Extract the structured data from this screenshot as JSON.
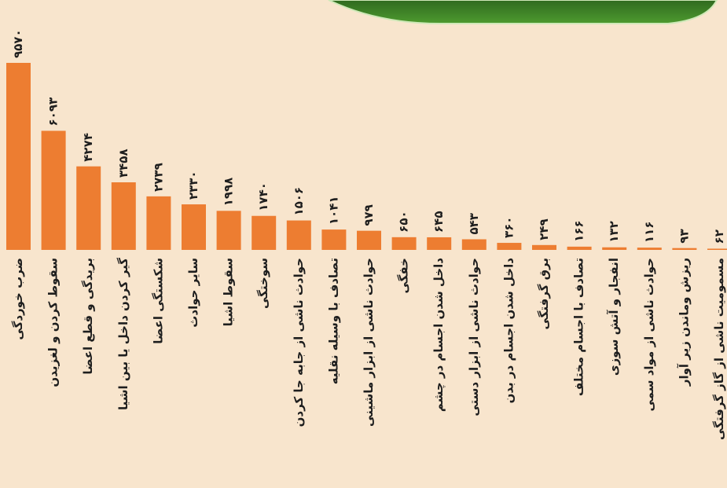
{
  "chart_data": {
    "type": "bar",
    "color": "#ed7d31",
    "categories": [
      "ضرب خوردگی",
      "سقوط کردن و لغزیدن",
      "بریدگی و قطع اعضا",
      "گیر کردن داخل یا بین اشیا",
      "شکستگی اعضا",
      "سایر حوادث",
      "سقوط اشیا",
      "سوختگی",
      "حوادث ناشی از جابه جا کردن",
      "تصادف با وسیله نقلیه",
      "حوادث ناشی از ابزار ماشینی",
      "خفگی",
      "داخل شدن اجسام در چشم",
      "حوادث ناشی از ابزار دستی",
      "داخل شدن اجسام در بدن",
      "برق گرفتگی",
      "تصادف با اجسام مختلف",
      "انفجار و آتش سوزی",
      "حوادث ناشی از مواد سمی",
      "ریزش وماندن زیر آوار",
      "مسمومیت ناشی از گاز گرفتگی"
    ],
    "values": [
      9570,
      6093,
      4274,
      3458,
      2739,
      2330,
      1998,
      1740,
      1506,
      1041,
      979,
      650,
      645,
      543,
      360,
      249,
      166,
      132,
      116,
      93,
      62
    ],
    "value_labels": [
      "۹۵۷۰",
      "۶۰۹۳",
      "۴۲۷۴",
      "۳۴۵۸",
      "۲۷۳۹",
      "۲۳۳۰",
      "۱۹۹۸",
      "۱۷۴۰",
      "۱۵۰۶",
      "۱۰۴۱",
      "۹۷۹",
      "۶۵۰",
      "۶۴۵",
      "۵۴۳",
      "۳۶۰",
      "۲۴۹",
      "۱۶۶",
      "۱۳۲",
      "۱۱۶",
      "۹۳",
      "۶۲"
    ]
  }
}
